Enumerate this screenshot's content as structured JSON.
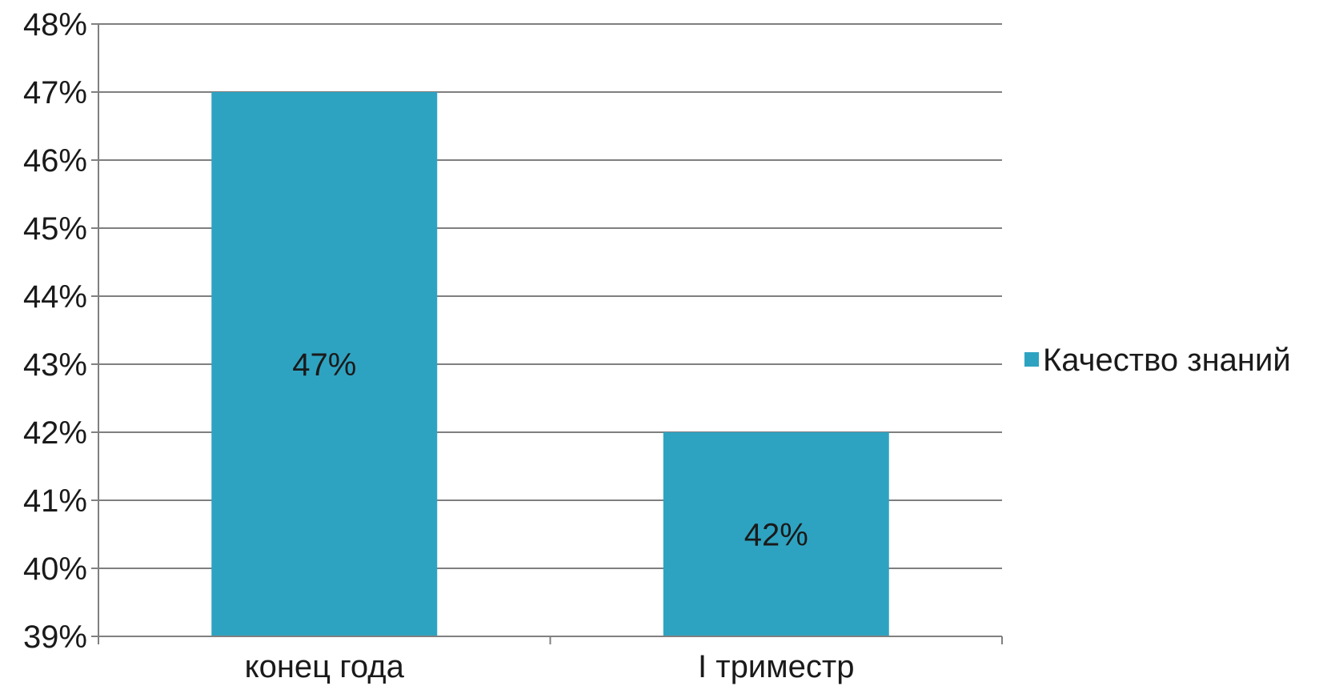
{
  "chart_data": {
    "type": "bar",
    "categories": [
      "конец года",
      "I триместр"
    ],
    "series": [
      {
        "name": "Качество знаний",
        "values": [
          47,
          42
        ]
      }
    ],
    "data_labels": [
      "47%",
      "42%"
    ],
    "y_ticks": [
      "39%",
      "40%",
      "41%",
      "42%",
      "43%",
      "44%",
      "45%",
      "46%",
      "47%",
      "48%"
    ],
    "ylim": [
      39,
      48
    ],
    "y_unit": "%",
    "grid": true,
    "legend": "right",
    "colors": {
      "bar": "#2ea3c1",
      "grid": "#7f7f7f",
      "axis": "#808080",
      "text": "#1a1a1a"
    }
  }
}
